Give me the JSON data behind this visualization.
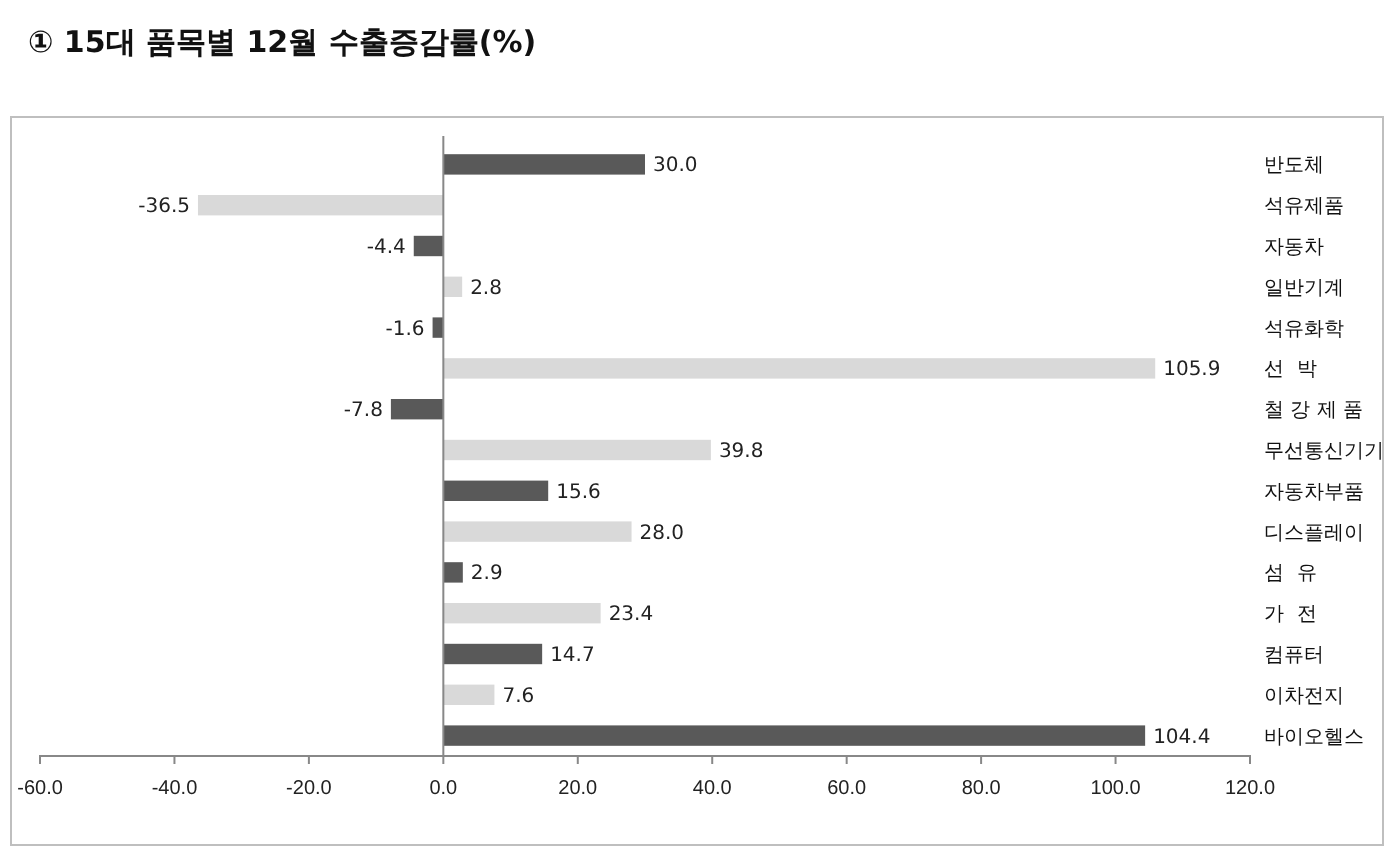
{
  "chart_data": {
    "type": "bar",
    "orientation": "horizontal",
    "title": "① 15대 품목별 12월 수출증감률(%)",
    "categories": [
      "반도체",
      "석유제품",
      "자동차",
      "일반기계",
      "석유화학",
      "선  박",
      "철 강 제 품",
      "무선통신기기",
      "자동차부품",
      "디스플레이",
      "섬  유",
      "가  전",
      "컴퓨터",
      "이차전지",
      "바이오헬스"
    ],
    "values": [
      30.0,
      -36.5,
      -4.4,
      2.8,
      -1.6,
      105.9,
      -7.8,
      39.8,
      15.6,
      28.0,
      2.9,
      23.4,
      14.7,
      7.6,
      104.4
    ],
    "value_labels": [
      "30.0",
      "-36.5",
      "-4.4",
      "2.8",
      "-1.6",
      "105.9",
      "-7.8",
      "39.8",
      "15.6",
      "28.0",
      "2.9",
      "23.4",
      "14.7",
      "7.6",
      "104.4"
    ],
    "colors": [
      "#595959",
      "#d9d9d9",
      "#595959",
      "#d9d9d9",
      "#595959",
      "#d9d9d9",
      "#595959",
      "#d9d9d9",
      "#595959",
      "#d9d9d9",
      "#595959",
      "#d9d9d9",
      "#595959",
      "#d9d9d9",
      "#595959"
    ],
    "xlim": [
      -60,
      120
    ],
    "xticks": [
      {
        "value": -60,
        "label": "-60.0"
      },
      {
        "value": -40,
        "label": "-40.0"
      },
      {
        "value": -20,
        "label": "-20.0"
      },
      {
        "value": 0,
        "label": "0.0"
      },
      {
        "value": 20,
        "label": "20.0"
      },
      {
        "value": 40,
        "label": "40.0"
      },
      {
        "value": 60,
        "label": "60.0"
      },
      {
        "value": 80,
        "label": "80.0"
      },
      {
        "value": 100,
        "label": "100.0"
      },
      {
        "value": 120,
        "label": "120.0"
      }
    ],
    "tick_labels": "x"
  }
}
